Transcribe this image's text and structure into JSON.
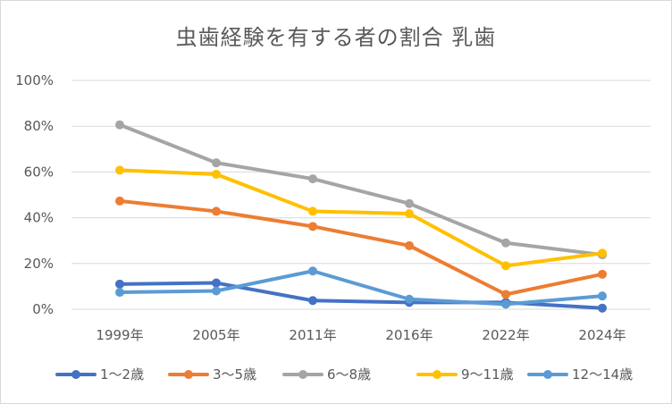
{
  "chart_data": {
    "type": "line",
    "title": "虫歯経験を有する者の割合 乳歯",
    "xlabel": "",
    "ylabel": "",
    "ylim": [
      0,
      100
    ],
    "yticks": [
      "0%",
      "20%",
      "40%",
      "60%",
      "80%",
      "100%"
    ],
    "ytick_values": [
      0,
      20,
      40,
      60,
      80,
      100
    ],
    "categories": [
      "1999年",
      "2005年",
      "2011年",
      "2016年",
      "2022年",
      "2024年"
    ],
    "grid": true,
    "legend_position": "bottom",
    "series": [
      {
        "name": "1～2歳",
        "color": "#4472c4",
        "values": [
          11,
          11.5,
          3.8,
          3.0,
          3.0,
          0.5
        ]
      },
      {
        "name": "3～5歳",
        "color": "#ed7d31",
        "values": [
          47.3,
          42.8,
          36.2,
          27.8,
          6.5,
          15.3
        ]
      },
      {
        "name": "6～8歳",
        "color": "#a5a5a5",
        "values": [
          80.6,
          64.0,
          57.0,
          46.2,
          29.0,
          23.8
        ]
      },
      {
        "name": "9～11歳",
        "color": "#ffc000",
        "values": [
          60.8,
          59.0,
          42.8,
          41.8,
          19.0,
          24.5
        ]
      },
      {
        "name": "12～14歳",
        "color": "#5b9bd5",
        "values": [
          7.4,
          8.0,
          16.7,
          4.4,
          2.2,
          5.8
        ]
      }
    ]
  }
}
